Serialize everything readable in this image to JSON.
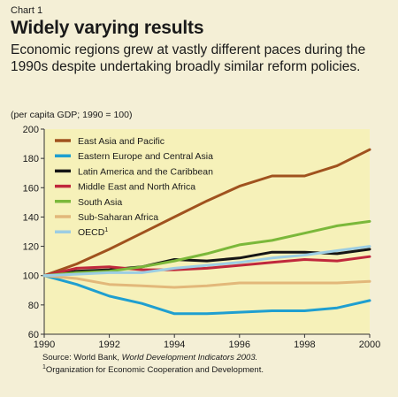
{
  "header": {
    "label": "Chart 1",
    "title": "Widely varying results",
    "subtitle": "Economic regions grew at vastly different paces during the 1990s despite undertaking broadly similar reform policies."
  },
  "unit_label": "(per capita GDP; 1990 = 100)",
  "source": {
    "prefix": "Source: World Bank, ",
    "italic": "World Development Indicators 2003.",
    "footnote_mark": "1",
    "footnote": "Organization for Economic Cooperation and Development."
  },
  "colors": {
    "plot_bg": "#f6f1b9",
    "axis": "#333333"
  },
  "chart_data": {
    "type": "line",
    "x": [
      1990,
      1991,
      1992,
      1993,
      1994,
      1995,
      1996,
      1997,
      1998,
      1999,
      2000
    ],
    "xticks": [
      1990,
      1992,
      1994,
      1996,
      1998,
      2000
    ],
    "yticks": [
      60,
      80,
      100,
      120,
      140,
      160,
      180,
      200
    ],
    "xlim": [
      1990,
      2000
    ],
    "ylim": [
      60,
      200
    ],
    "grid": false,
    "legend_position": "top-left",
    "series": [
      {
        "name": "East Asia and Pacific",
        "sup": "",
        "color": "#a0521e",
        "values": [
          100,
          108,
          118,
          129,
          140,
          151,
          161,
          168,
          168,
          175,
          186
        ]
      },
      {
        "name": "Eastern Europe and Central Asia",
        "sup": "",
        "color": "#1f9fd0",
        "values": [
          100,
          94,
          86,
          81,
          74,
          74,
          75,
          76,
          76,
          78,
          83
        ]
      },
      {
        "name": "Latin America and the Caribbean",
        "sup": "",
        "color": "#151515",
        "values": [
          100,
          103,
          104,
          106,
          111,
          110,
          112,
          116,
          116,
          115,
          118
        ]
      },
      {
        "name": "Middle East and North Africa",
        "sup": "",
        "color": "#c0283c",
        "values": [
          100,
          105,
          106,
          104,
          104,
          105,
          107,
          109,
          111,
          110,
          113
        ]
      },
      {
        "name": "South Asia",
        "sup": "",
        "color": "#7bb83a",
        "values": [
          100,
          102,
          103,
          106,
          110,
          115,
          121,
          124,
          129,
          134,
          137
        ]
      },
      {
        "name": "Sub-Saharan Africa",
        "sup": "",
        "color": "#e2b87a",
        "values": [
          100,
          98,
          94,
          93,
          92,
          93,
          95,
          95,
          95,
          95,
          96
        ]
      },
      {
        "name": "OECD",
        "sup": "1",
        "color": "#9ccde3",
        "values": [
          100,
          101,
          102,
          102,
          105,
          107,
          109,
          112,
          114,
          117,
          120
        ]
      }
    ]
  }
}
